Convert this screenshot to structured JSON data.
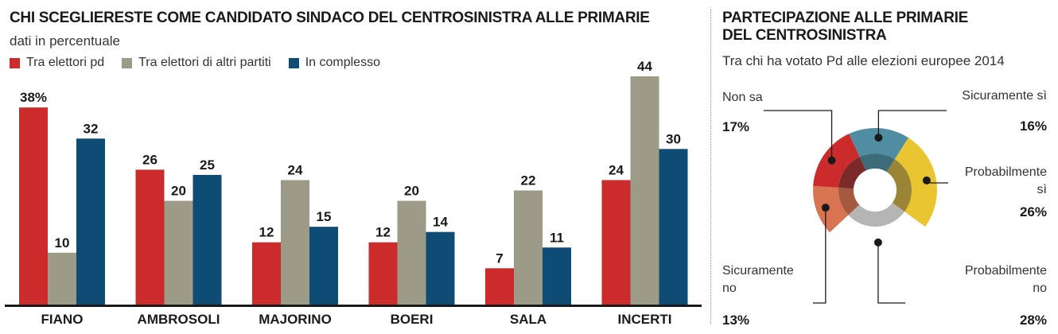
{
  "left": {
    "title": "CHI SCEGLIERESTE COME CANDIDATO SINDACO DEL CENTROSINISTRA ALLE PRIMARIE",
    "subtitle": "dati in percentuale"
  },
  "right": {
    "title_line1": "PARTECIPAZIONE ALLE PRIMARIE",
    "title_line2": "DEL CENTROSINISTRA",
    "subtitle": "Tra chi ha votato Pd alle elezioni europee 2014",
    "labels": {
      "non_sa": {
        "text": "Non sa",
        "value": "17%"
      },
      "sicuramente_si": {
        "text": "Sicuramente sì",
        "value": "16%"
      },
      "probabilmente_si": {
        "line1": "Probabilmente",
        "line2": "sì",
        "value": "26%"
      },
      "sicuramente_no": {
        "line1": "Sicuramente",
        "line2": "no",
        "value": "13%"
      },
      "probabilmente_no": {
        "line1": "Probabilmente",
        "line2": "no",
        "value": "28%"
      }
    }
  },
  "colors": {
    "pd": "#cc2b2b",
    "altri": "#9b9b88",
    "complesso": "#0f4c75",
    "sicuramente_si": "#4f8ea2",
    "probabilmente_si": "#e8c531",
    "probabilmente_no": "#ffffff",
    "sicuramente_no": "#d97453",
    "non_sa": "#cc2b2b"
  },
  "chart_data": [
    {
      "type": "bar",
      "title": "CHI SCEGLIERESTE COME CANDIDATO SINDACO DEL CENTROSINISTRA ALLE PRIMARIE",
      "subtitle": "dati in percentuale",
      "categories": [
        "FIANO",
        "AMBROSOLI",
        "MAJORINO",
        "BOERI",
        "SALA",
        "INCERTI"
      ],
      "series": [
        {
          "name": "Tra elettori pd",
          "values": [
            38,
            26,
            12,
            12,
            7,
            24
          ]
        },
        {
          "name": "Tra elettori di altri partiti",
          "values": [
            10,
            20,
            24,
            20,
            22,
            44
          ]
        },
        {
          "name": "In complesso",
          "values": [
            32,
            25,
            15,
            14,
            11,
            30
          ]
        }
      ],
      "first_label_suffix": "%",
      "ylim": [
        0,
        44
      ],
      "legend": "top-left",
      "grid": false
    },
    {
      "type": "pie",
      "style": "donut",
      "title": "PARTECIPAZIONE ALLE PRIMARIE DEL CENTROSINISTRA",
      "subtitle": "Tra chi ha votato Pd alle elezioni europee 2014",
      "slices": [
        {
          "label": "Sicuramente sì",
          "value": 16
        },
        {
          "label": "Probabilmente sì",
          "value": 26
        },
        {
          "label": "Probabilmente no",
          "value": 28
        },
        {
          "label": "Sicuramente no",
          "value": 13
        },
        {
          "label": "Non sa",
          "value": 17
        }
      ]
    }
  ]
}
